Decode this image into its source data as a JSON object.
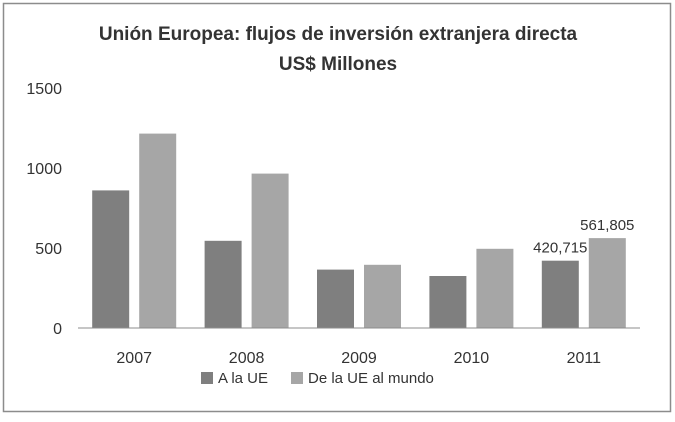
{
  "chart_data": {
    "type": "bar",
    "title": "Unión Europea: flujos de inversión extranjera directa",
    "subtitle": "US$ Millones",
    "categories": [
      "2007",
      "2008",
      "2009",
      "2010",
      "2011"
    ],
    "series": [
      {
        "name": "A la UE",
        "values": [
          860,
          545,
          365,
          325,
          420.715
        ],
        "color": "#7f7f7f"
      },
      {
        "name": "De la UE al mundo",
        "values": [
          1215,
          965,
          395,
          495,
          561.805
        ],
        "color": "#a6a6a6"
      }
    ],
    "data_labels": [
      {
        "series": 0,
        "category": "2011",
        "text": "420,715"
      },
      {
        "series": 1,
        "category": "2011",
        "text": "561,805"
      }
    ],
    "ylim": [
      0,
      1500
    ],
    "yticks": [
      "0",
      "500",
      "1000",
      "1500"
    ],
    "xlabel": "",
    "ylabel": "",
    "grid": false,
    "legend_position": "bottom"
  }
}
